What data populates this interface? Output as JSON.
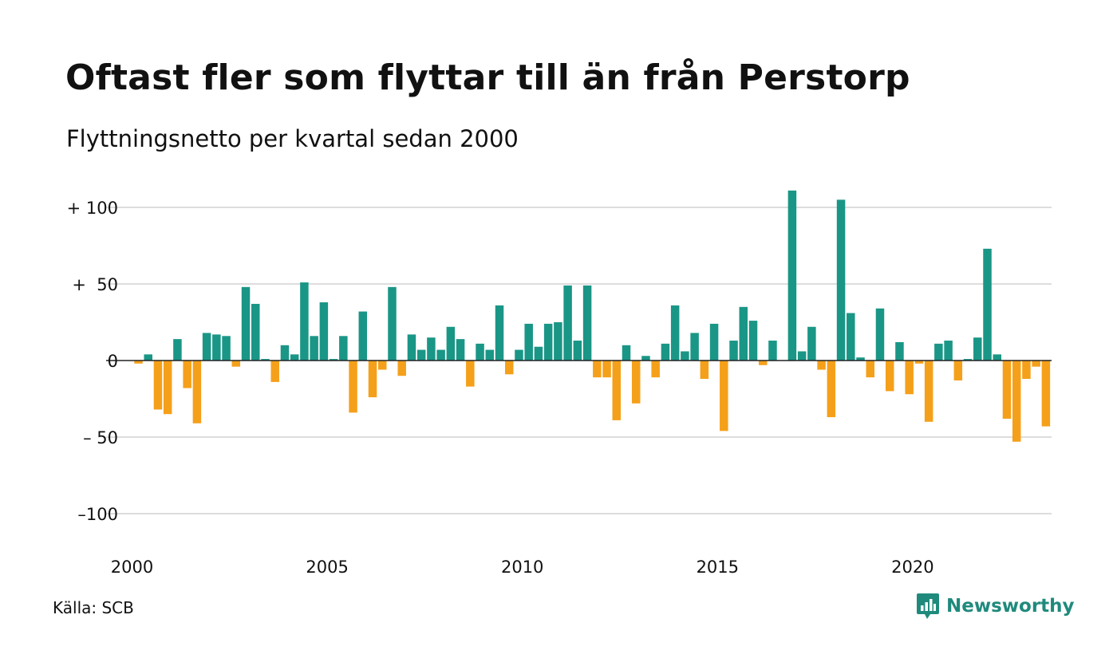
{
  "header": {
    "title": "Oftast fler som flyttar till än från Perstorp",
    "subtitle": "Flyttningsnetto per kvartal sedan 2000"
  },
  "footer": {
    "source": "Källa: SCB",
    "brand": "Newsworthy",
    "brand_icon": "newsworthy-logo-icon"
  },
  "colors": {
    "positive": "#1a9686",
    "negative": "#f5a01a",
    "grid": "#dddddd",
    "zero_line": "#222222",
    "brand": "#1f8a7c"
  },
  "chart_data": {
    "type": "bar",
    "title": "Oftast fler som flyttar till än från Perstorp",
    "subtitle": "Flyttningsnetto per kvartal sedan 2000",
    "x_start": "2000 Q1",
    "frequency": "quarterly",
    "values": [
      -2,
      4,
      -32,
      -35,
      14,
      -18,
      -41,
      18,
      17,
      16,
      -4,
      48,
      37,
      1,
      -14,
      10,
      4,
      51,
      16,
      38,
      1,
      16,
      -34,
      32,
      -24,
      -6,
      48,
      -10,
      17,
      7,
      15,
      7,
      22,
      14,
      -17,
      11,
      7,
      36,
      -9,
      7,
      24,
      9,
      24,
      25,
      49,
      13,
      49,
      -11,
      -11,
      -39,
      10,
      -28,
      3,
      -11,
      11,
      36,
      6,
      18,
      -12,
      24,
      -46,
      13,
      35,
      26,
      -3,
      13,
      0,
      111,
      6,
      22,
      -6,
      -37,
      105,
      31,
      2,
      -11,
      34,
      -20,
      12,
      -22,
      -2,
      -40,
      11,
      13,
      -13,
      1,
      15,
      73,
      4,
      -38,
      -53,
      -12,
      -4,
      -43
    ],
    "y_ticks": [
      100,
      50,
      0,
      -50,
      -100
    ],
    "y_tick_labels": [
      "+ 100",
      "+  50",
      "0",
      "– 50",
      "–100"
    ],
    "x_ticks": [
      2000,
      2005,
      2010,
      2015,
      2020
    ],
    "x_tick_labels": [
      "2000",
      "2005",
      "2010",
      "2015",
      "2020"
    ],
    "ylim": [
      -120,
      115
    ],
    "grid": true,
    "legend": "none"
  }
}
